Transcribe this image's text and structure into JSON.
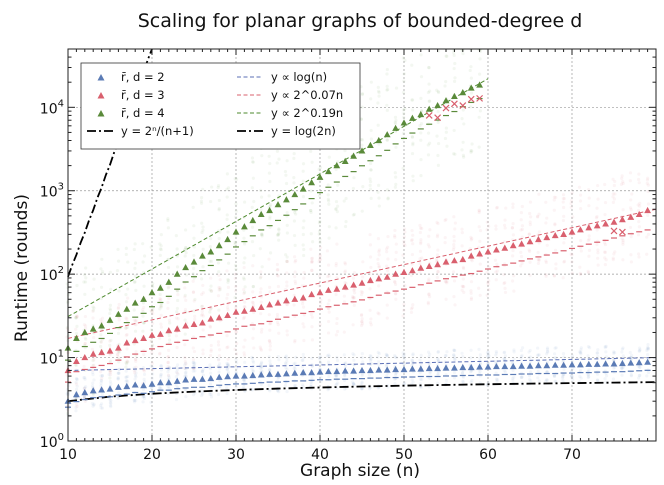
{
  "chart_data": {
    "type": "scatter",
    "title": "Scaling for planar graphs of bounded-degree d",
    "xlabel": "Graph size (n)",
    "ylabel": "Runtime (rounds)",
    "xlim": [
      10,
      80
    ],
    "ylim": [
      1,
      50000
    ],
    "yscale": "log",
    "grid": true,
    "legend_position": "top-left",
    "x_ticks": [
      {
        "value": 10,
        "label": "10"
      },
      {
        "value": 20,
        "label": "20"
      },
      {
        "value": 30,
        "label": "30"
      },
      {
        "value": 40,
        "label": "40"
      },
      {
        "value": 50,
        "label": "50"
      },
      {
        "value": 60,
        "label": "60"
      },
      {
        "value": 70,
        "label": "70"
      }
    ],
    "y_ticks": [
      {
        "value": 1,
        "base": "10",
        "exp": "0"
      },
      {
        "value": 10,
        "base": "10",
        "exp": "1"
      },
      {
        "value": 100,
        "base": "10",
        "exp": "2"
      },
      {
        "value": 1000,
        "base": "10",
        "exp": "3"
      },
      {
        "value": 10000,
        "base": "10",
        "exp": "4"
      }
    ],
    "series": [
      {
        "name": "r̄, d = 2",
        "kind": "mean-markers",
        "color": "#5b7bb5",
        "x": [
          10,
          11,
          12,
          13,
          14,
          15,
          16,
          17,
          18,
          19,
          20,
          21,
          22,
          23,
          24,
          25,
          26,
          27,
          28,
          29,
          30,
          31,
          32,
          33,
          34,
          35,
          36,
          37,
          38,
          39,
          40,
          41,
          42,
          43,
          44,
          45,
          46,
          47,
          48,
          49,
          50,
          51,
          52,
          53,
          54,
          55,
          56,
          57,
          58,
          59,
          60,
          61,
          62,
          63,
          64,
          65,
          66,
          67,
          68,
          69,
          70,
          71,
          72,
          73,
          74,
          75,
          76,
          77,
          78,
          79
        ],
        "values": [
          3.0,
          3.6,
          3.8,
          4.0,
          4.1,
          4.2,
          4.4,
          4.5,
          4.7,
          4.6,
          4.8,
          5.0,
          5.0,
          5.2,
          5.4,
          5.5,
          5.5,
          5.6,
          5.8,
          5.9,
          6.0,
          6.0,
          6.1,
          6.2,
          6.3,
          6.3,
          6.4,
          6.5,
          6.6,
          6.6,
          6.7,
          6.8,
          6.8,
          6.9,
          6.9,
          7.0,
          7.0,
          7.1,
          7.1,
          7.2,
          7.2,
          7.3,
          7.3,
          7.4,
          7.4,
          7.5,
          7.5,
          7.6,
          7.6,
          7.7,
          7.7,
          7.8,
          7.8,
          7.8,
          7.9,
          7.9,
          8.0,
          8.0,
          8.1,
          8.1,
          8.2,
          8.2,
          8.3,
          8.3,
          8.4,
          8.4,
          8.5,
          8.6,
          8.7,
          8.8
        ],
        "medians": [
          3.0,
          3.5,
          3.7,
          3.9,
          4.0,
          4.0,
          4.2,
          4.3,
          4.5,
          4.4,
          4.6,
          4.8,
          4.8,
          5.0,
          5.1,
          5.2,
          5.2,
          5.3,
          5.5,
          5.6,
          5.7,
          5.7,
          5.8,
          5.9,
          6.0,
          6.0,
          6.1,
          6.2,
          6.2,
          6.3,
          6.4,
          6.4,
          6.5,
          6.5,
          6.6,
          6.6,
          6.7,
          6.7,
          6.8,
          6.8,
          6.9,
          6.9,
          7.0,
          7.0,
          7.0,
          7.1,
          7.1,
          7.2,
          7.2,
          7.3,
          7.3,
          7.3,
          7.4,
          7.4,
          7.5,
          7.5,
          7.6,
          7.6,
          7.6,
          7.7,
          7.7,
          7.8,
          7.8,
          7.9,
          7.9,
          8.0,
          8.0,
          8.1,
          8.2,
          8.3
        ]
      },
      {
        "name": "r̄, d = 3",
        "kind": "mean-markers",
        "color": "#d9606e",
        "x": [
          10,
          11,
          12,
          13,
          14,
          15,
          16,
          17,
          18,
          19,
          20,
          21,
          22,
          23,
          24,
          25,
          26,
          27,
          28,
          29,
          30,
          31,
          32,
          33,
          34,
          35,
          36,
          37,
          38,
          39,
          40,
          41,
          42,
          43,
          44,
          45,
          46,
          47,
          48,
          49,
          50,
          51,
          52,
          53,
          54,
          55,
          56,
          57,
          58,
          59,
          60,
          61,
          62,
          63,
          64,
          65,
          66,
          67,
          68,
          69,
          70,
          71,
          72,
          73,
          74,
          75,
          76,
          77,
          78,
          79
        ],
        "values": [
          7,
          9,
          10,
          11,
          11.5,
          12,
          13,
          15,
          16,
          17,
          18.5,
          19,
          21,
          22,
          24,
          25,
          26,
          29,
          30,
          32,
          35,
          36,
          38,
          40,
          43,
          45,
          48,
          50,
          52,
          57,
          60,
          64,
          66,
          70,
          74,
          78,
          84,
          88,
          92,
          100,
          105,
          110,
          118,
          124,
          130,
          140,
          145,
          150,
          165,
          175,
          185,
          195,
          205,
          220,
          230,
          245,
          260,
          275,
          290,
          300,
          320,
          340,
          360,
          380,
          400,
          420,
          450,
          480,
          520,
          580
        ],
        "medians": [
          6,
          8,
          8.5,
          9,
          9.5,
          10,
          11,
          12,
          13,
          14,
          15,
          16,
          17,
          18,
          19,
          20,
          21,
          22,
          23,
          24,
          26,
          28,
          29,
          30,
          32,
          34,
          36,
          38,
          40,
          42,
          45,
          48,
          50,
          52,
          55,
          58,
          62,
          66,
          70,
          74,
          78,
          82,
          88,
          92,
          98,
          104,
          110,
          115,
          120,
          128,
          136,
          145,
          152,
          160,
          170,
          180,
          190,
          200,
          212,
          225,
          240,
          255,
          270,
          285,
          300,
          320,
          340,
          360,
          380,
          400
        ]
      },
      {
        "name": "r̄, d = 4",
        "kind": "mean-markers",
        "color": "#5a8a3a",
        "x": [
          10,
          11,
          12,
          13,
          14,
          15,
          16,
          17,
          18,
          19,
          20,
          21,
          22,
          23,
          24,
          25,
          26,
          27,
          28,
          29,
          30,
          31,
          32,
          33,
          34,
          35,
          36,
          37,
          38,
          39,
          40,
          41,
          42,
          43,
          44,
          45,
          46,
          47,
          48,
          49,
          50,
          51,
          52,
          53,
          54,
          55,
          56,
          57,
          58,
          59
        ],
        "values": [
          13,
          17,
          20,
          22,
          24,
          28,
          33,
          38,
          45,
          50,
          60,
          68,
          80,
          100,
          120,
          140,
          165,
          185,
          220,
          260,
          320,
          370,
          440,
          520,
          580,
          680,
          780,
          900,
          1050,
          1250,
          1450,
          1700,
          2000,
          2250,
          2600,
          3000,
          3500,
          4000,
          4700,
          5600,
          6500,
          7400,
          8200,
          9500,
          10500,
          12000,
          13500,
          15000,
          17000,
          18500
        ],
        "medians": [
          11,
          14,
          16,
          18,
          20,
          23,
          27,
          31,
          36,
          40,
          48,
          54,
          64,
          78,
          95,
          110,
          130,
          150,
          175,
          205,
          250,
          290,
          340,
          400,
          450,
          520,
          600,
          700,
          820,
          950,
          1120,
          1300,
          1500,
          1750,
          2000,
          2350,
          2700,
          3100,
          3600,
          4300,
          5000,
          5800,
          6500,
          7400,
          8300,
          9400,
          10500,
          12000,
          13500,
          15000
        ]
      },
      {
        "name": "y ∝ log(n)",
        "kind": "dashed-line",
        "color": "#5b6fb5",
        "x": [
          10,
          80
        ],
        "values": [
          7,
          10
        ]
      },
      {
        "name": "y ∝ 2^(0.07n)",
        "kind": "dashed-line",
        "color": "#d9606e",
        "x": [
          10,
          80
        ],
        "values": [
          17,
          600
        ]
      },
      {
        "name": "y ∝ 2^(0.19n)",
        "kind": "dashed-line",
        "color": "#4e8a2e",
        "x": [
          10,
          60
        ],
        "values": [
          31,
          22000
        ]
      },
      {
        "name": "y = 2^n/(n+1)",
        "kind": "dashdot-line",
        "color": "#000000",
        "x": [
          10,
          10.5,
          11,
          11.5,
          12,
          12.5,
          13,
          13.5,
          14,
          14.5,
          15,
          15.5,
          16,
          16.5,
          17,
          17.5,
          18,
          18.5,
          19,
          19.5,
          20,
          20.5
        ],
        "values": [
          93.1,
          128.5,
          170.7,
          237.4,
          315.1,
          440.2,
          585.1,
          820.9,
          1092.3,
          1537.7,
          2048,
          2890.3,
          3855.1,
          5451.6,
          7281.8,
          10318,
          13797,
          19579,
          26214,
          37238,
          49932,
          71004
        ]
      },
      {
        "name": "y = log(2n)",
        "kind": "dashdot-line",
        "color": "#000000",
        "x": [
          10,
          15,
          20,
          25,
          30,
          35,
          40,
          45,
          50,
          55,
          60,
          65,
          70,
          75,
          80
        ],
        "values": [
          3.0,
          3.4,
          3.69,
          3.91,
          4.09,
          4.25,
          4.38,
          4.5,
          4.61,
          4.7,
          4.79,
          4.87,
          4.94,
          5.01,
          5.08
        ]
      }
    ],
    "outliers": {
      "name": "×",
      "color": "#d9606e",
      "x": [
        53,
        54,
        55,
        56,
        57,
        58,
        59,
        75,
        76
      ],
      "values": [
        8000,
        7500,
        9800,
        11000,
        10500,
        12500,
        12800,
        330,
        320
      ]
    }
  },
  "legend": {
    "entries": [
      {
        "key": "d2",
        "label": "r̄, d = 2",
        "marker": "triangle",
        "color": "#5b7bb5"
      },
      {
        "key": "d3",
        "label": "r̄, d = 3",
        "marker": "triangle",
        "color": "#d9606e"
      },
      {
        "key": "d4",
        "label": "r̄, d = 4",
        "marker": "triangle",
        "color": "#5a8a3a"
      },
      {
        "key": "exp",
        "label": "y = 2ⁿ/(n+1)",
        "marker": "dashdot",
        "color": "#000000"
      },
      {
        "key": "log",
        "label": "y ∝ log(n)",
        "marker": "dashed",
        "color": "#5b6fb5"
      },
      {
        "key": "f007",
        "label": "y ∝ 2^0.07n",
        "marker": "dashed",
        "color": "#d9606e"
      },
      {
        "key": "f019",
        "label": "y ∝ 2^0.19n",
        "marker": "dashed",
        "color": "#4e8a2e"
      },
      {
        "key": "log2n",
        "label": "y = log(2n)",
        "marker": "dashdot",
        "color": "#000000"
      }
    ]
  }
}
